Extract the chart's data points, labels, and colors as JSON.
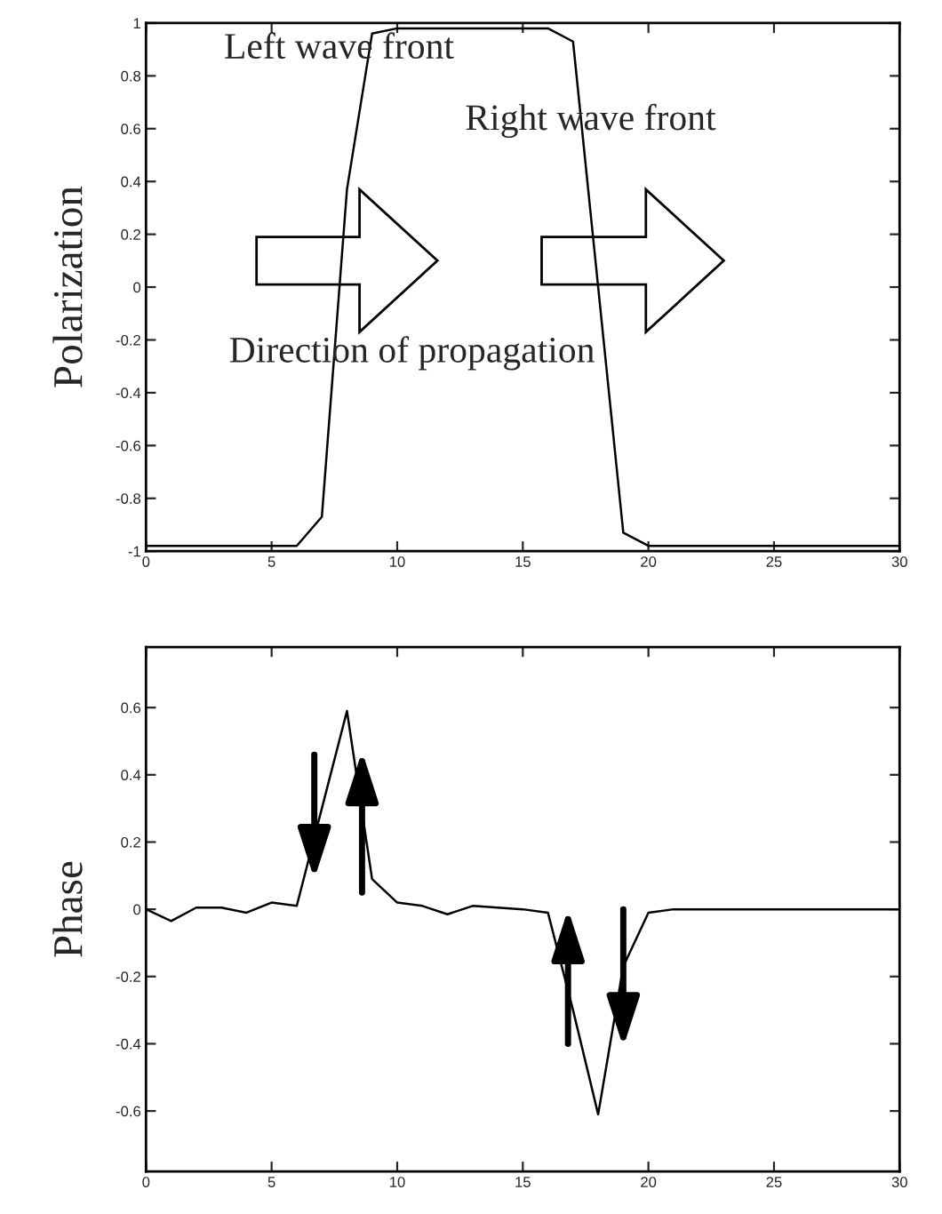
{
  "chart_data": [
    {
      "type": "line",
      "ylabel": "Polarization",
      "x": [
        0,
        1,
        2,
        3,
        4,
        5,
        6,
        7,
        8,
        9,
        10,
        11,
        12,
        13,
        14,
        15,
        16,
        17,
        18,
        19,
        20,
        21,
        22,
        23,
        24,
        25,
        26,
        27,
        28,
        29,
        30
      ],
      "series": [
        {
          "color": "#000000",
          "values": [
            -0.98,
            -0.98,
            -0.98,
            -0.98,
            -0.98,
            -0.98,
            -0.98,
            -0.87,
            0.37,
            0.96,
            0.98,
            0.98,
            0.98,
            0.98,
            0.98,
            0.98,
            0.98,
            0.93,
            0.0,
            -0.93,
            -0.98,
            -0.98,
            -0.98,
            -0.98,
            -0.98,
            -0.98,
            -0.98,
            -0.98,
            -0.98,
            -0.98,
            -0.98
          ]
        }
      ],
      "xlim": [
        0,
        30
      ],
      "xticks": [
        0,
        5,
        10,
        15,
        20,
        25,
        30
      ],
      "ylim": [
        -1,
        1
      ],
      "yticks": [
        -1,
        -0.8,
        -0.6,
        -0.4,
        -0.2,
        0,
        0.2,
        0.4,
        0.6,
        0.8,
        1
      ],
      "annotations": [
        "Left wave front",
        "Right wave front",
        "Direction of propagation"
      ],
      "grid": false,
      "legend": false,
      "marker": "none",
      "line_style": "solid"
    },
    {
      "type": "line",
      "ylabel": "Phase",
      "x": [
        0,
        1,
        2,
        3,
        4,
        5,
        6,
        7,
        8,
        9,
        10,
        11,
        12,
        13,
        14,
        15,
        16,
        17,
        18,
        19,
        20,
        21,
        22,
        23,
        24,
        25,
        26,
        27,
        28,
        29,
        30
      ],
      "series": [
        {
          "color": "#000000",
          "values": [
            0,
            -0.035,
            0.005,
            0.005,
            -0.01,
            0.02,
            0.01,
            0.3,
            0.59,
            0.09,
            0.02,
            0.01,
            -0.015,
            0.01,
            0.005,
            0,
            -0.01,
            -0.3,
            -0.61,
            -0.17,
            -0.01,
            0,
            0,
            0,
            0,
            0,
            0,
            0,
            0,
            0,
            0
          ]
        }
      ],
      "xlim": [
        0,
        30
      ],
      "xticks": [
        0,
        5,
        10,
        15,
        20,
        25,
        30
      ],
      "ylim": [
        -0.78,
        0.78
      ],
      "yticks": [
        -0.6,
        -0.4,
        -0.2,
        0,
        0.2,
        0.4,
        0.6
      ],
      "grid": false,
      "legend": false,
      "marker": "none",
      "line_style": "solid"
    }
  ]
}
